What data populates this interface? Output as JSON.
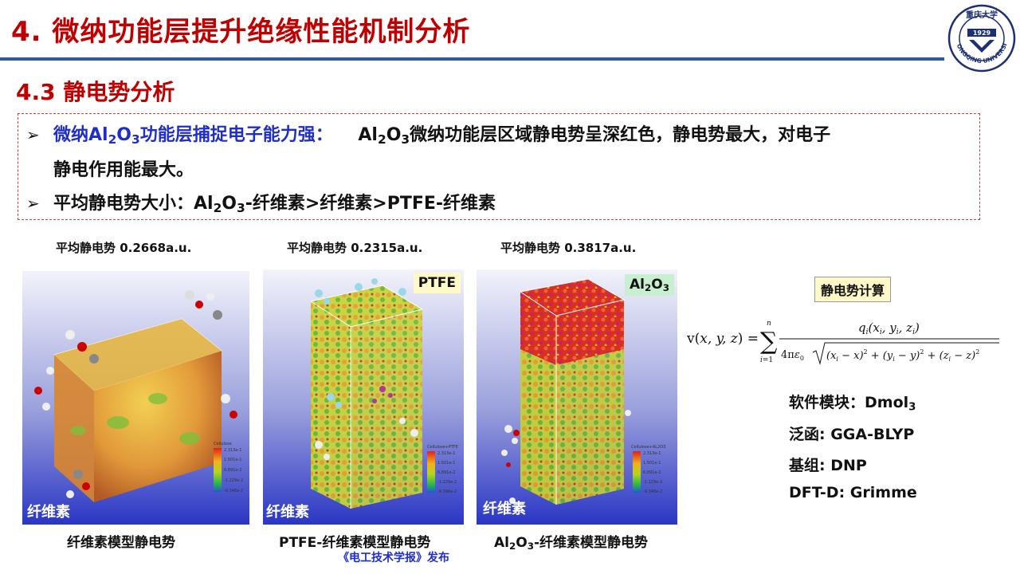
{
  "header": {
    "title": "4. 微纳功能层提升绝缘性能机制分析",
    "section": "4.3 静电势分析"
  },
  "bullets": {
    "b1_lead": "微纳Al",
    "b1_lead_sub": "2",
    "b1_lead_mid": "O",
    "b1_lead_sub2": "3",
    "b1_lead_tail": "功能层捕捉电子能力强：",
    "b1_body_pre": "Al",
    "b1_body_sub": "2",
    "b1_body_mid": "O",
    "b1_body_sub2": "3",
    "b1_body_tail": "微纳功能层区域静电势呈深红色，静电势最大，对电子",
    "b1_line2": "静电作用能最大。",
    "b2_pre": "平均静电势大小：Al",
    "b2_sub": "2",
    "b2_mid": "O",
    "b2_sub2": "3",
    "b2_tail": "-纤维素>纤维素>PTFE-纤维素"
  },
  "panels": [
    {
      "top_caption": "平均静电势 0.2668a.u.",
      "tag": "纤维素",
      "badge": "",
      "bottom_caption": "纤维素模型静电势",
      "legend_title": "Cellulose"
    },
    {
      "top_caption": "平均静电势 0.2315a.u.",
      "tag": "纤维素",
      "badge": "PTFE",
      "bottom_caption": "PTFE-纤维素模型静电势",
      "legend_title": "Cellulose+PTFE"
    },
    {
      "top_caption": "平均静电势 0.3817a.u.",
      "tag": "纤维素",
      "badge_pre": "Al",
      "badge_sub": "2",
      "badge_mid": "O",
      "badge_sub2": "3",
      "bottom_pre": "Al",
      "bottom_sub": "2",
      "bottom_mid": "O",
      "bottom_sub2": "3",
      "bottom_tail": "-纤维素模型静电势",
      "legend_title": "Cellulose+AL2O3"
    }
  ],
  "legend_ticks": [
    "2.313e-1",
    "1.501e-1",
    "6.891e-2",
    "-1.229e-2",
    "-9.348e-2"
  ],
  "calc": {
    "label": "静电势计算",
    "params": [
      {
        "pre": "软件模块：Dmol",
        "sub": "3"
      },
      {
        "pre": "泛函: GGA-BLYP",
        "sub": ""
      },
      {
        "pre": "基组: DNP",
        "sub": ""
      },
      {
        "pre": "DFT-D: Grimme",
        "sub": ""
      }
    ]
  },
  "source": "《电工技术学报》发布",
  "logo": {
    "top_text": "重庆大学",
    "year": "1929",
    "ring_text": "CHONGQING UNIVERSITY"
  },
  "colors": {
    "title_red": "#c00000",
    "rule_blue": "#2f5b9c",
    "accent_blue": "#1f2ec9"
  }
}
